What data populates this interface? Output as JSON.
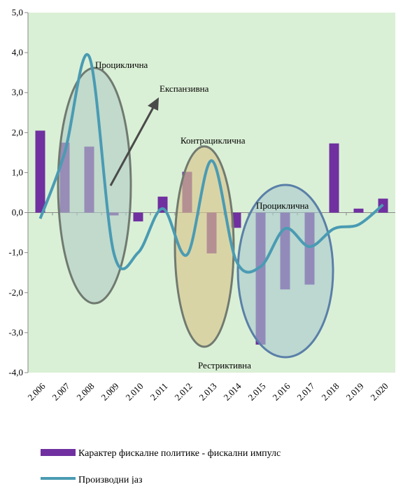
{
  "chart_data": {
    "type": "bar+line",
    "categories": [
      "2.006",
      "2.007",
      "2.008",
      "2.009",
      "2.010",
      "2.011",
      "2.012",
      "2.013",
      "2.014",
      "2.015",
      "2.016",
      "2.017",
      "2.018",
      "2.019",
      "2.020"
    ],
    "series": [
      {
        "name": "Карактер фискалне политике - фискални импулс",
        "type": "bar",
        "color": "#7030a0",
        "values": [
          2.05,
          1.75,
          1.65,
          -0.07,
          -0.22,
          0.4,
          1.02,
          -1.02,
          -0.38,
          -3.3,
          -1.92,
          -1.8,
          1.73,
          0.1,
          0.35
        ]
      },
      {
        "name": "Производни јаз",
        "type": "line",
        "color": "#4a9bb3",
        "values": [
          -0.15,
          1.5,
          3.9,
          -1.0,
          -1.0,
          0.1,
          -1.05,
          1.3,
          -1.2,
          -1.35,
          -0.4,
          -0.85,
          -0.4,
          -0.3,
          0.2
        ]
      }
    ],
    "ylim": [
      -4,
      5
    ],
    "yticks": [
      {
        "value": -4,
        "label": "-4,0"
      },
      {
        "value": -3,
        "label": "-3,0"
      },
      {
        "value": -2,
        "label": "-2,0"
      },
      {
        "value": -1,
        "label": "-1,0"
      },
      {
        "value": 0,
        "label": "0,0"
      },
      {
        "value": 1,
        "label": "1,0"
      },
      {
        "value": 2,
        "label": "2,0"
      },
      {
        "value": 3,
        "label": "3,0"
      },
      {
        "value": 4,
        "label": "4,0"
      },
      {
        "value": 5,
        "label": "5,0"
      }
    ],
    "annotations": [
      "Проциклична",
      "Експанзивна",
      "Контрациклична",
      "Проциклична",
      "Рестриктивна"
    ]
  }
}
